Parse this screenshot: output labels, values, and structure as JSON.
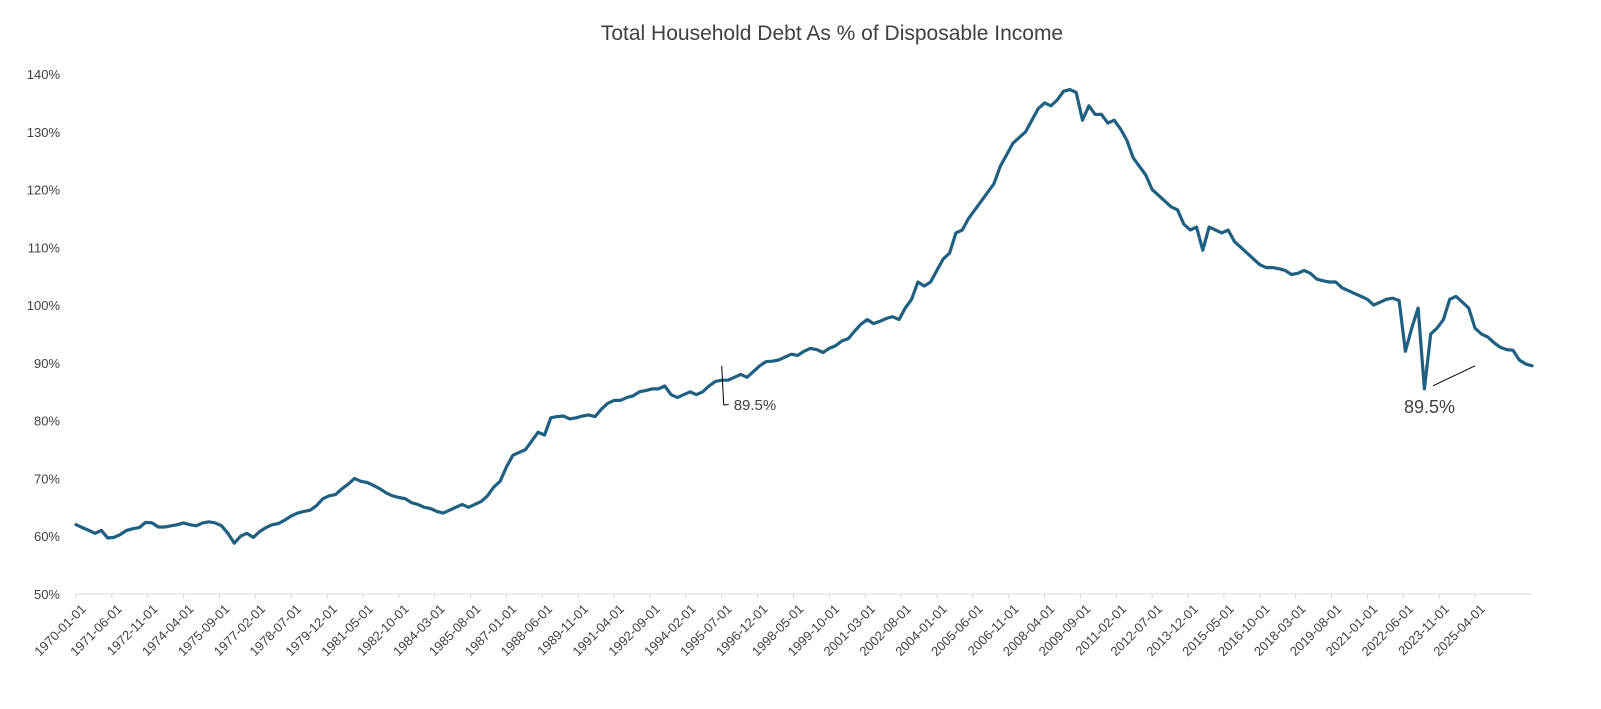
{
  "chart_data": {
    "type": "line",
    "title": "Total Household Debt As % of Disposable Income",
    "xlabel": "",
    "ylabel": "",
    "ylim": [
      50,
      140
    ],
    "yticks": [
      "50%",
      "60%",
      "70%",
      "80%",
      "90%",
      "100%",
      "110%",
      "120%",
      "130%",
      "140%"
    ],
    "ytick_values": [
      50,
      60,
      70,
      80,
      90,
      100,
      110,
      120,
      130,
      140
    ],
    "xticks": [
      "1970-01-01",
      "1971-06-01",
      "1972-11-01",
      "1974-04-01",
      "1975-09-01",
      "1977-02-01",
      "1978-07-01",
      "1979-12-01",
      "1981-05-01",
      "1982-10-01",
      "1984-03-01",
      "1985-08-01",
      "1987-01-01",
      "1988-06-01",
      "1989-11-01",
      "1991-04-01",
      "1992-09-01",
      "1994-02-01",
      "1995-07-01",
      "1996-12-01",
      "1998-05-01",
      "1999-10-01",
      "2001-03-01",
      "2002-08-01",
      "2004-01-01",
      "2005-06-01",
      "2006-11-01",
      "2008-04-01",
      "2009-09-01",
      "2011-02-01",
      "2012-07-01",
      "2013-12-01",
      "2015-05-01",
      "2016-10-01",
      "2018-03-01",
      "2019-08-01",
      "2021-01-01",
      "2022-06-01",
      "2023-11-01",
      "2025-04-01"
    ],
    "grid": false,
    "legend": "none",
    "line_color": "#1F5F7F",
    "series": [
      {
        "x_start": "1970-01-01",
        "x_end": "2025-04-01",
        "frequency": "quarterly",
        "values": [
          62.0,
          61.5,
          61.0,
          60.5,
          61.0,
          59.7,
          59.8,
          60.3,
          61.0,
          61.3,
          61.5,
          62.4,
          62.3,
          61.6,
          61.6,
          61.8,
          62.0,
          62.3,
          62.0,
          61.8,
          62.3,
          62.5,
          62.3,
          61.8,
          60.5,
          58.8,
          60.0,
          60.5,
          59.8,
          60.8,
          61.5,
          62.0,
          62.2,
          62.8,
          63.5,
          64.0,
          64.3,
          64.5,
          65.3,
          66.5,
          67.0,
          67.2,
          68.2,
          69.0,
          70.0,
          69.5,
          69.3,
          68.8,
          68.2,
          67.5,
          67.0,
          66.7,
          66.5,
          65.8,
          65.5,
          65.0,
          64.8,
          64.3,
          64.0,
          64.5,
          65.0,
          65.5,
          65.0,
          65.5,
          66.0,
          67.0,
          68.5,
          69.5,
          72.0,
          74.0,
          74.5,
          75.0,
          76.5,
          78.0,
          77.5,
          80.5,
          80.7,
          80.8,
          80.3,
          80.5,
          80.8,
          81.0,
          80.7,
          82.0,
          83.0,
          83.5,
          83.5,
          84.0,
          84.3,
          85.0,
          85.2,
          85.5,
          85.5,
          86.0,
          84.5,
          84.0,
          84.5,
          85.0,
          84.5,
          85.0,
          86.0,
          86.8,
          87.0,
          87.0,
          87.5,
          88.0,
          87.5,
          88.5,
          89.5,
          90.2,
          90.3,
          90.5,
          91.0,
          91.5,
          91.3,
          92.0,
          92.5,
          92.3,
          91.8,
          92.5,
          93.0,
          93.8,
          94.2,
          95.5,
          96.7,
          97.5,
          96.8,
          97.2,
          97.7,
          98.0,
          97.5,
          99.5,
          101.0,
          104.0,
          103.3,
          104.0,
          106.0,
          108.0,
          109.0,
          112.5,
          113.0,
          115.0,
          116.5,
          118.0,
          119.5,
          121.0,
          124.0,
          126.0,
          128.0,
          129.0,
          130.0,
          132.0,
          134.0,
          135.0,
          134.5,
          135.5,
          137.0,
          137.3,
          136.8,
          132.0,
          134.5,
          133.0,
          133.0,
          131.5,
          132.0,
          130.5,
          128.5,
          125.5,
          124.0,
          122.5,
          120.0,
          119.0,
          118.0,
          117.0,
          116.5,
          114.0,
          113.0,
          113.5,
          109.5,
          113.5,
          113.0,
          112.5,
          113.0,
          111.0,
          110.0,
          109.0,
          108.0,
          107.0,
          106.5,
          106.5,
          106.3,
          106.0,
          105.3,
          105.5,
          106.0,
          105.5,
          104.5,
          104.2,
          104.0,
          104.0,
          103.0,
          102.5,
          102.0,
          101.5,
          101.0,
          100.0,
          100.5,
          101.0,
          101.2,
          100.8,
          92.0,
          96.0,
          99.5,
          85.5,
          95.0,
          96.0,
          97.5,
          101.0,
          101.5,
          100.5,
          99.5,
          96.0,
          95.0,
          94.5,
          93.5,
          92.7,
          92.3,
          92.2,
          90.5,
          89.8,
          89.5
        ]
      }
    ],
    "annotations": [
      {
        "label": "89.5%",
        "at": "1995-07-01",
        "value": 89.5
      },
      {
        "label": "89.5%",
        "at": "2025-04-01",
        "value": 89.5
      }
    ]
  }
}
